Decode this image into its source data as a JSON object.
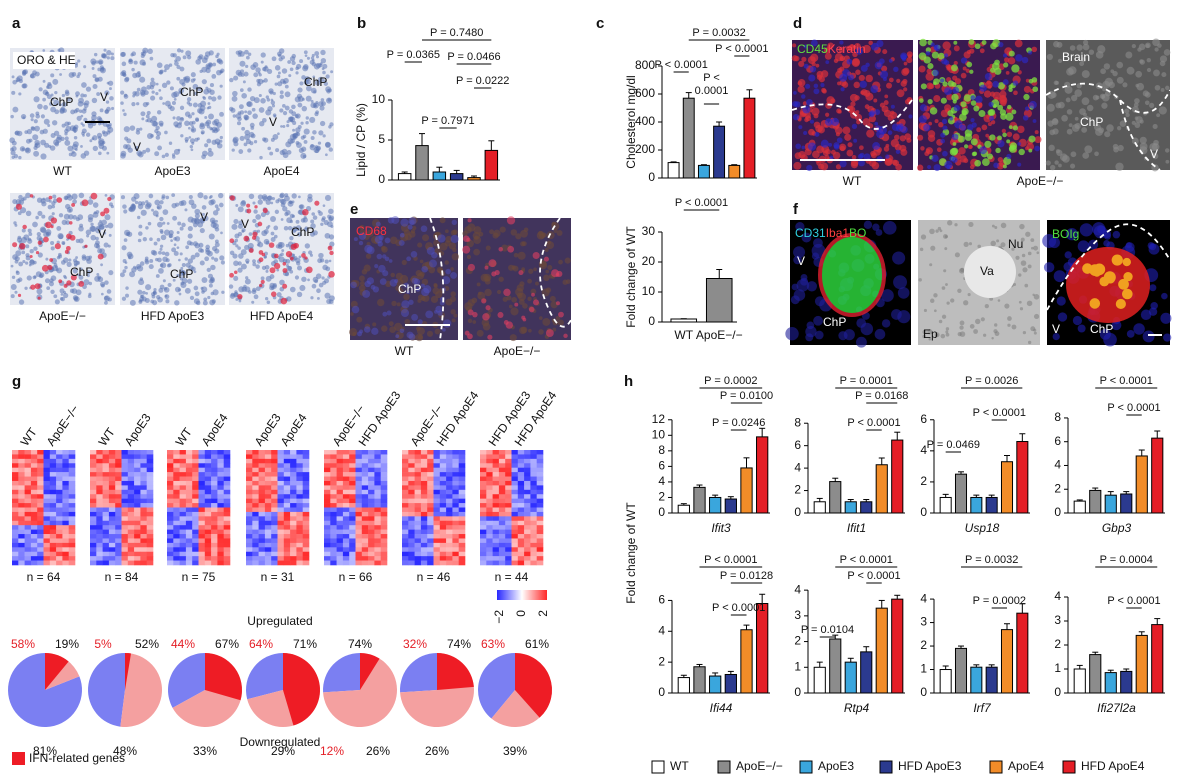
{
  "panel_labels": [
    "a",
    "b",
    "c",
    "d",
    "e",
    "f",
    "g",
    "h"
  ],
  "legend": {
    "names": [
      "WT",
      "ApoE−/−",
      "ApoE3",
      "HFD ApoE3",
      "ApoE4",
      "HFD ApoE4"
    ],
    "colors": [
      "#ffffff",
      "#8c8c8c",
      "#3aa6dd",
      "#2b3a8f",
      "#f28c28",
      "#e41e26"
    ]
  },
  "panel_a": {
    "stain": "ORO & HE",
    "captions": [
      "WT",
      "ApoE3",
      "ApoE4",
      "ApoE−/−",
      "HFD ApoE3",
      "HFD ApoE4"
    ],
    "labels": [
      [
        "ChP",
        "V"
      ],
      [
        "V",
        "ChP"
      ],
      [
        "ChP",
        "V"
      ],
      [
        "V",
        "ChP"
      ],
      [
        "V",
        "ChP"
      ],
      [
        "V",
        "ChP"
      ]
    ]
  },
  "panel_d": {
    "markers": [
      "CD45",
      "Keratin"
    ],
    "captions": [
      "WT",
      "ApoE−/−"
    ],
    "labels": [
      "Brain",
      "ChP",
      "V"
    ]
  },
  "panel_e": {
    "marker": "CD68",
    "label": "ChP",
    "captions": [
      "WT",
      "ApoE−/−"
    ]
  },
  "panel_f": {
    "markers": [
      "CD31",
      "Iba1",
      "BO"
    ],
    "labels1": [
      "V",
      "ChP"
    ],
    "labels2": [
      "Nu",
      "Va",
      "Ep"
    ],
    "marker3": "BOIg",
    "labels3": [
      "V",
      "ChP"
    ]
  },
  "panel_g": {
    "heatmaps": [
      {
        "columns": [
          "WT",
          "ApoE−/−"
        ],
        "n": "n = 64"
      },
      {
        "columns": [
          "WT",
          "ApoE3"
        ],
        "n": "n = 84"
      },
      {
        "columns": [
          "WT",
          "ApoE4"
        ],
        "n": "n = 75"
      },
      {
        "columns": [
          "ApoE3",
          "ApoE4"
        ],
        "n": "n = 31"
      },
      {
        "columns": [
          "ApoE−/−",
          "HFD ApoE3"
        ],
        "n": "n = 66"
      },
      {
        "columns": [
          "ApoE−/−",
          "HFD ApoE4"
        ],
        "n": "n = 46"
      },
      {
        "columns": [
          "HFD ApoE3",
          "HFD ApoE4"
        ],
        "n": "n = 44"
      }
    ],
    "colorbar": [
      "−2",
      "0",
      "2"
    ],
    "up_label": "Upregulated",
    "down_label": "Downregulated",
    "ifn_legend": "IFN-related genes",
    "pies": [
      {
        "ifn": 58,
        "up": 19,
        "down": 81,
        "value_labels": {
          "ifn": "58%",
          "up": "19%",
          "down": "81%"
        }
      },
      {
        "ifn": 5,
        "up": 52,
        "down": 48,
        "value_labels": {
          "ifn": "5%",
          "up": "52%",
          "down": "48%"
        }
      },
      {
        "ifn": 44,
        "up": 67,
        "down": 33,
        "value_labels": {
          "ifn": "44%",
          "up": "67%",
          "down": "33%"
        }
      },
      {
        "ifn": 64,
        "up": 71,
        "down": 29,
        "value_labels": {
          "ifn": "64%",
          "up": "71%",
          "down": "29%"
        }
      },
      {
        "ifn": 12,
        "up": 74,
        "down": 26,
        "value_labels": {
          "ifn": "12%",
          "up": "74%",
          "down": "26%"
        }
      },
      {
        "ifn": 32,
        "up": 74,
        "down": 26,
        "value_labels": {
          "ifn": "32%",
          "up": "74%",
          "down": "26%"
        }
      },
      {
        "ifn": 63,
        "up": 61,
        "down": 39,
        "value_labels": {
          "ifn": "63%",
          "up": "61%",
          "down": "39%"
        }
      }
    ]
  },
  "panel_h": {
    "ylabel": "Fold change of WT"
  },
  "chart_data": [
    {
      "type": "bar",
      "ylabel": "Lipid / CP (%)",
      "values": [
        0.8,
        4.3,
        1.0,
        0.8,
        0.3,
        3.7
      ],
      "errors": [
        0.2,
        1.5,
        0.6,
        0.4,
        0.2,
        1.2
      ],
      "ylim": [
        0,
        15
      ],
      "yticks": [
        0,
        5,
        10
      ],
      "annotations": [
        "P = 0.7480",
        "P = 0.0365",
        "P = 0.0466",
        "P = 0.0222",
        "P = 0.7971"
      ]
    },
    {
      "type": "bar",
      "ylabel": "Cholesterol mg/dl",
      "values": [
        110,
        570,
        90,
        370,
        90,
        570
      ],
      "errors": [
        5,
        40,
        5,
        30,
        5,
        60
      ],
      "ylim": [
        0,
        800
      ],
      "yticks": [
        0,
        200,
        400,
        600,
        800
      ],
      "annotations": [
        "P = 0.0032",
        "P < 0.0001",
        "P < 0.0001",
        [
          "P <",
          "0.0001"
        ]
      ]
    },
    {
      "type": "bar",
      "ylabel": "Fold change of WT",
      "categories": [
        "WT",
        "ApoE−/−"
      ],
      "values": [
        1,
        14.5
      ],
      "errors": [
        0.1,
        3
      ],
      "ylim": [
        0,
        35
      ],
      "yticks": [
        0,
        10,
        20,
        30
      ],
      "annotations": [
        "P < 0.0001"
      ]
    },
    {
      "type": "bar",
      "xlabel": "Ifit3",
      "values": [
        1,
        3.3,
        2,
        1.8,
        5.8,
        9.8
      ],
      "errors": [
        0.2,
        0.3,
        0.3,
        0.3,
        1.3,
        1.1
      ],
      "ylim": [
        0,
        13
      ],
      "yticks": [
        0,
        2,
        4,
        6,
        8,
        10,
        12
      ],
      "annotations": [
        "P = 0.0002",
        "P = 0.0100",
        "P = 0.0246"
      ]
    },
    {
      "type": "bar",
      "xlabel": "Ifit1",
      "values": [
        1,
        2.8,
        1,
        1,
        4.3,
        6.5
      ],
      "errors": [
        0.3,
        0.3,
        0.2,
        0.2,
        0.6,
        0.7
      ],
      "ylim": [
        0,
        9
      ],
      "yticks": [
        0,
        2,
        4,
        6,
        8
      ],
      "annotations": [
        "P = 0.0001",
        "P = 0.0168",
        "P < 0.0001"
      ]
    },
    {
      "type": "bar",
      "xlabel": "Usp18",
      "values": [
        1,
        2.5,
        1,
        1,
        3.3,
        4.6
      ],
      "errors": [
        0.2,
        0.15,
        0.15,
        0.15,
        0.4,
        0.5
      ],
      "ylim": [
        0,
        6.5
      ],
      "yticks": [
        0,
        2,
        4,
        6
      ],
      "annotations": [
        "P = 0.0026",
        "P < 0.0001",
        "P = 0.0469"
      ]
    },
    {
      "type": "bar",
      "xlabel": "Gbp3",
      "values": [
        1,
        1.9,
        1.5,
        1.6,
        4.8,
        6.3
      ],
      "errors": [
        0.1,
        0.2,
        0.3,
        0.2,
        0.5,
        0.6
      ],
      "ylim": [
        0,
        8.5
      ],
      "yticks": [
        0,
        2,
        4,
        6,
        8
      ],
      "annotations": [
        "P < 0.0001",
        "P < 0.0001"
      ]
    },
    {
      "type": "bar",
      "xlabel": "Ifi44",
      "values": [
        1,
        1.7,
        1.1,
        1.2,
        4.1,
        5.8
      ],
      "errors": [
        0.15,
        0.15,
        0.2,
        0.2,
        0.3,
        0.6
      ],
      "ylim": [
        0,
        7
      ],
      "yticks": [
        0,
        2,
        4,
        6
      ],
      "annotations": [
        "P < 0.0001",
        "P = 0.0128",
        "P < 0.0001"
      ]
    },
    {
      "type": "bar",
      "xlabel": "Rtp4",
      "values": [
        1,
        2.1,
        1.2,
        1.6,
        3.3,
        3.65
      ],
      "errors": [
        0.2,
        0.15,
        0.15,
        0.2,
        0.3,
        0.15
      ],
      "ylim": [
        0,
        4.2
      ],
      "yticks": [
        0,
        1,
        2,
        3,
        4
      ],
      "annotations": [
        "P < 0.0001",
        "P < 0.0001",
        "P = 0.0104"
      ]
    },
    {
      "type": "bar",
      "xlabel": "Irf7",
      "values": [
        1,
        1.9,
        1.1,
        1.1,
        2.7,
        3.4
      ],
      "errors": [
        0.15,
        0.1,
        0.1,
        0.1,
        0.25,
        0.4
      ],
      "ylim": [
        0,
        4.6
      ],
      "yticks": [
        0,
        1,
        2,
        3,
        4
      ],
      "annotations": [
        "P = 0.0032",
        "P = 0.0002"
      ]
    },
    {
      "type": "bar",
      "xlabel": "Ifi27l2a",
      "values": [
        1,
        1.6,
        0.85,
        0.9,
        2.4,
        2.85
      ],
      "errors": [
        0.15,
        0.1,
        0.1,
        0.1,
        0.15,
        0.25
      ],
      "ylim": [
        0,
        4.5
      ],
      "yticks": [
        0,
        1,
        2,
        3,
        4
      ],
      "annotations": [
        "P = 0.0004",
        "P < 0.0001"
      ]
    }
  ]
}
